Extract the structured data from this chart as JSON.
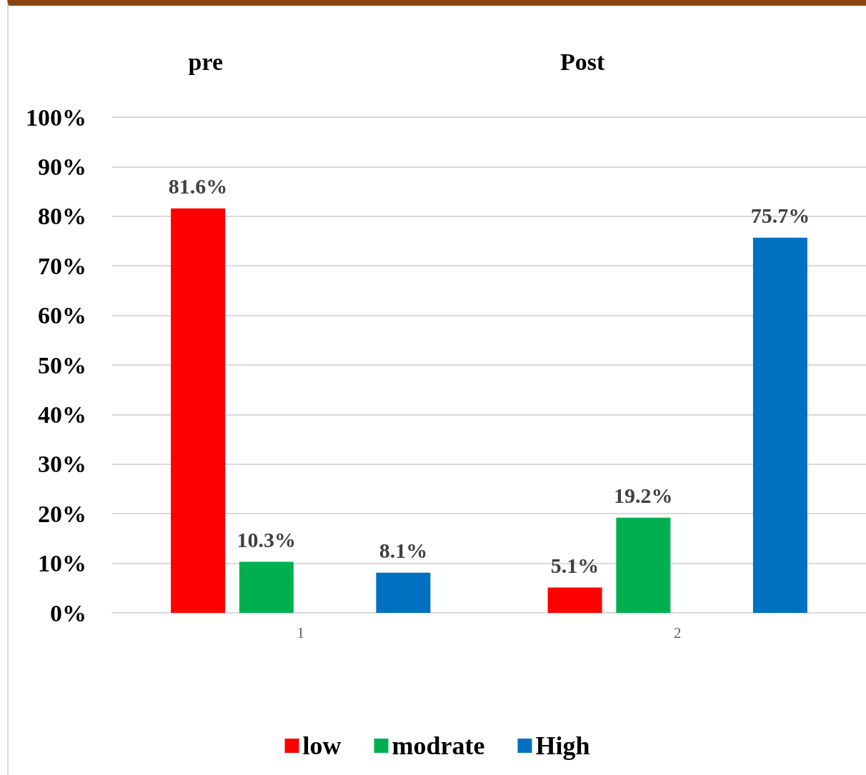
{
  "chart_data": {
    "type": "bar",
    "categories": [
      "1",
      "2"
    ],
    "series": [
      {
        "name": "low",
        "color": "#ff0000",
        "values": [
          81.6,
          5.1
        ],
        "value_labels": [
          "81.6%",
          "5.1%"
        ]
      },
      {
        "name": "modrate",
        "color": "#00b050",
        "values": [
          10.3,
          19.2
        ],
        "value_labels": [
          "10.3%",
          "19.2%"
        ]
      },
      {
        "values": [
          null,
          null
        ]
      },
      {
        "name": "High",
        "color": "#0070c0",
        "values": [
          8.1,
          75.7
        ],
        "value_labels": [
          "8.1%",
          "75.7%"
        ]
      }
    ],
    "annotations": [
      "pre",
      "Post"
    ],
    "ylim": [
      0,
      100
    ],
    "yticks": [
      {
        "value": 0,
        "label": "0%"
      },
      {
        "value": 10,
        "label": "10%"
      },
      {
        "value": 20,
        "label": "20%"
      },
      {
        "value": 30,
        "label": "30%"
      },
      {
        "value": 40,
        "label": "40%"
      },
      {
        "value": 50,
        "label": "50%"
      },
      {
        "value": 60,
        "label": "60%"
      },
      {
        "value": 70,
        "label": "70%"
      },
      {
        "value": 80,
        "label": "80%"
      },
      {
        "value": 90,
        "label": "90%"
      },
      {
        "value": 100,
        "label": "100%"
      }
    ],
    "grid": "y",
    "legend": "bottom"
  }
}
